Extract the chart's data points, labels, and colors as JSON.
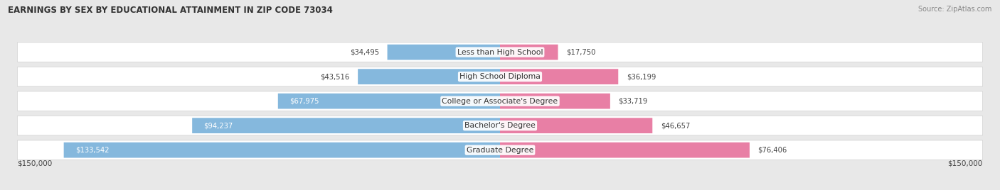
{
  "title": "EARNINGS BY SEX BY EDUCATIONAL ATTAINMENT IN ZIP CODE 73034",
  "source": "Source: ZipAtlas.com",
  "categories": [
    "Less than High School",
    "High School Diploma",
    "College or Associate's Degree",
    "Bachelor's Degree",
    "Graduate Degree"
  ],
  "male_values": [
    34495,
    43516,
    67975,
    94237,
    133542
  ],
  "female_values": [
    17750,
    36199,
    33719,
    46657,
    76406
  ],
  "male_color": "#85b8dd",
  "female_color": "#e87fa5",
  "max_val": 150000,
  "bg_color": "#e8e8e8",
  "row_bg": "#f2f2f2",
  "label_color": "#444444",
  "axis_label": "$150,000"
}
